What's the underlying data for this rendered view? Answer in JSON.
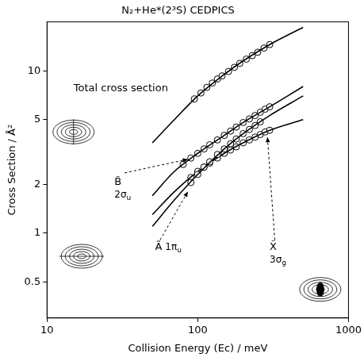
{
  "chart_data": {
    "type": "line",
    "title": "N₂+He*(2³S) CEDPICS",
    "x_label": "Collision Energy (Eᴄ) / meV",
    "y_label": "Cross Section / Å²",
    "log": true,
    "grid": false,
    "marker": "circle",
    "line_style": "solid",
    "xlim": [
      10,
      1000
    ],
    "xticks": [
      10,
      100,
      1000
    ],
    "ylim": [
      0.3,
      20
    ],
    "yticks": [
      0.5,
      1,
      2,
      5,
      10
    ],
    "series": [
      {
        "name": "Total cross section",
        "color": "#000000",
        "x": [
          50,
          70,
          100,
          150,
          200,
          300,
          500
        ],
        "values": [
          3.6,
          5.0,
          7.0,
          9.5,
          11.5,
          14.5,
          18.5
        ],
        "points": {
          "x": [
            95,
            105,
            115,
            125,
            135,
            145,
            160,
            175,
            190,
            210,
            230,
            250,
            275,
            300
          ],
          "values": [
            6.7,
            7.3,
            7.9,
            8.4,
            8.9,
            9.3,
            9.9,
            10.5,
            11.1,
            11.8,
            12.4,
            13.0,
            13.8,
            14.5
          ]
        }
      },
      {
        "name": "B̃",
        "orbital": "2σu",
        "color": "#000000",
        "x": [
          50,
          70,
          100,
          150,
          200,
          300,
          500
        ],
        "values": [
          1.7,
          2.4,
          3.1,
          4.0,
          4.8,
          6.0,
          8.0
        ],
        "points": {
          "x": [
            80,
            90,
            100,
            110,
            120,
            135,
            150,
            165,
            180,
            200,
            220,
            240,
            260,
            280,
            300
          ],
          "values": [
            2.65,
            2.9,
            3.1,
            3.3,
            3.5,
            3.75,
            4.0,
            4.25,
            4.5,
            4.8,
            5.05,
            5.3,
            5.55,
            5.8,
            6.0
          ]
        }
      },
      {
        "name": "Ã",
        "orbital": "1πu",
        "color": "#000000",
        "x": [
          50,
          70,
          100,
          150,
          200,
          300,
          500
        ],
        "values": [
          1.1,
          1.6,
          2.3,
          3.3,
          4.1,
          5.3,
          7.0
        ],
        "points": {
          "x": [
            90,
            100,
            110,
            120,
            135,
            150,
            165,
            180,
            200,
            220,
            240,
            260
          ],
          "values": [
            2.05,
            2.3,
            2.55,
            2.75,
            3.05,
            3.3,
            3.55,
            3.8,
            4.1,
            4.35,
            4.6,
            4.85
          ]
        }
      },
      {
        "name": "X̃",
        "orbital": "3σg",
        "color": "#000000",
        "x": [
          50,
          70,
          100,
          150,
          200,
          300,
          500
        ],
        "values": [
          1.3,
          1.8,
          2.4,
          3.1,
          3.6,
          4.3,
          5.0
        ],
        "points": {
          "x": [
            90,
            100,
            110,
            120,
            135,
            150,
            165,
            180,
            200,
            220,
            240,
            260,
            280,
            300
          ],
          "values": [
            2.2,
            2.4,
            2.55,
            2.7,
            2.9,
            3.1,
            3.25,
            3.4,
            3.6,
            3.75,
            3.9,
            4.05,
            4.2,
            4.3
          ]
        }
      }
    ]
  }
}
